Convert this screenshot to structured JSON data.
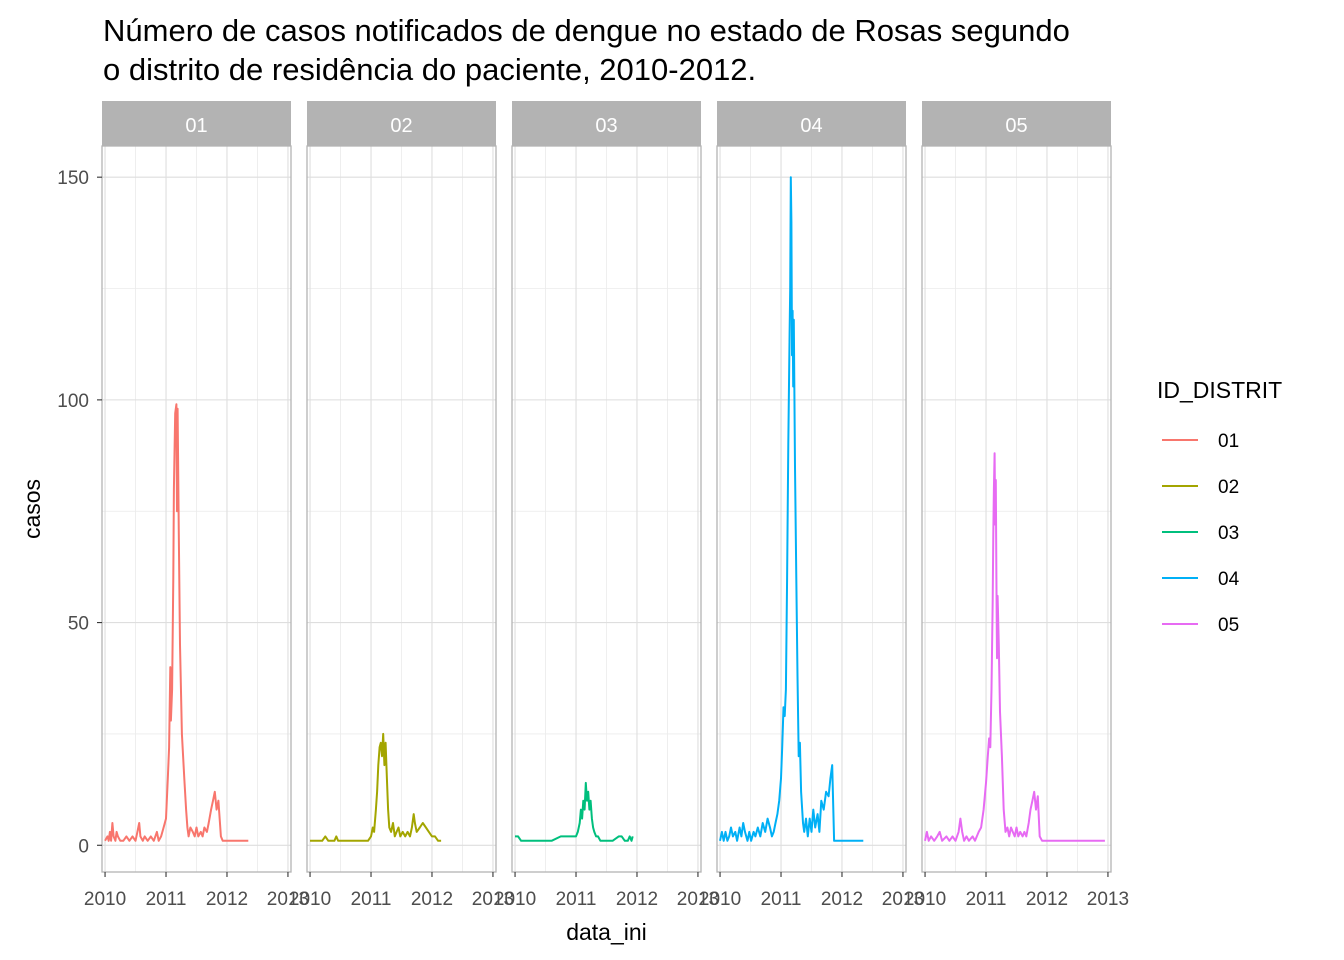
{
  "chart_data": {
    "type": "line",
    "title_lines": [
      "Número de casos notificados de dengue no estado de Rosas segundo",
      "o distrito de residência do paciente, 2010-2012."
    ],
    "xlabel": "data_ini",
    "ylabel": "casos",
    "xlim": [
      2009.95,
      2013.05
    ],
    "ylim": [
      -6,
      157
    ],
    "x_ticks": [
      2010,
      2011,
      2012,
      2013
    ],
    "x_tick_labels": [
      "2010",
      "2011",
      "2012",
      "2013"
    ],
    "y_ticks": [
      0,
      50,
      100,
      150
    ],
    "y_tick_labels": [
      "0",
      "50",
      "100",
      "150"
    ],
    "grid": true,
    "facet_by": "ID_DISTRIT",
    "legend": {
      "title": "ID_DISTRIT",
      "position": "right"
    },
    "series": [
      {
        "name": "01",
        "color": "#F8766D",
        "points": [
          [
            2010.0,
            1
          ],
          [
            2010.04,
            2
          ],
          [
            2010.06,
            1
          ],
          [
            2010.08,
            3
          ],
          [
            2010.1,
            1
          ],
          [
            2010.12,
            5
          ],
          [
            2010.14,
            2
          ],
          [
            2010.17,
            1
          ],
          [
            2010.19,
            3
          ],
          [
            2010.21,
            2
          ],
          [
            2010.25,
            1
          ],
          [
            2010.3,
            1
          ],
          [
            2010.35,
            2
          ],
          [
            2010.4,
            1
          ],
          [
            2010.45,
            2
          ],
          [
            2010.5,
            1
          ],
          [
            2010.53,
            3
          ],
          [
            2010.56,
            5
          ],
          [
            2010.58,
            2
          ],
          [
            2010.62,
            1
          ],
          [
            2010.65,
            2
          ],
          [
            2010.7,
            1
          ],
          [
            2010.75,
            2
          ],
          [
            2010.8,
            1
          ],
          [
            2010.85,
            3
          ],
          [
            2010.88,
            1
          ],
          [
            2010.92,
            2
          ],
          [
            2010.96,
            4
          ],
          [
            2011.0,
            6
          ],
          [
            2011.03,
            15
          ],
          [
            2011.05,
            22
          ],
          [
            2011.07,
            40
          ],
          [
            2011.08,
            28
          ],
          [
            2011.1,
            35
          ],
          [
            2011.12,
            60
          ],
          [
            2011.13,
            80
          ],
          [
            2011.15,
            97
          ],
          [
            2011.17,
            99
          ],
          [
            2011.18,
            75
          ],
          [
            2011.19,
            98
          ],
          [
            2011.21,
            70
          ],
          [
            2011.23,
            45
          ],
          [
            2011.26,
            25
          ],
          [
            2011.3,
            15
          ],
          [
            2011.33,
            8
          ],
          [
            2011.35,
            4
          ],
          [
            2011.37,
            2
          ],
          [
            2011.4,
            4
          ],
          [
            2011.44,
            3
          ],
          [
            2011.47,
            2
          ],
          [
            2011.5,
            4
          ],
          [
            2011.53,
            2
          ],
          [
            2011.57,
            3
          ],
          [
            2011.6,
            2
          ],
          [
            2011.63,
            4
          ],
          [
            2011.67,
            3
          ],
          [
            2011.7,
            5
          ],
          [
            2011.74,
            8
          ],
          [
            2011.77,
            10
          ],
          [
            2011.8,
            12
          ],
          [
            2011.83,
            8
          ],
          [
            2011.86,
            10
          ],
          [
            2011.9,
            2
          ],
          [
            2011.93,
            1
          ],
          [
            2012.0,
            1
          ],
          [
            2012.2,
            1
          ],
          [
            2012.35,
            1
          ]
        ]
      },
      {
        "name": "02",
        "color": "#A3A500",
        "points": [
          [
            2010.0,
            1
          ],
          [
            2010.1,
            1
          ],
          [
            2010.2,
            1
          ],
          [
            2010.25,
            2
          ],
          [
            2010.3,
            1
          ],
          [
            2010.4,
            1
          ],
          [
            2010.43,
            2
          ],
          [
            2010.46,
            1
          ],
          [
            2010.6,
            1
          ],
          [
            2010.8,
            1
          ],
          [
            2010.95,
            1
          ],
          [
            2011.0,
            2
          ],
          [
            2011.03,
            4
          ],
          [
            2011.05,
            3
          ],
          [
            2011.08,
            8
          ],
          [
            2011.1,
            12
          ],
          [
            2011.12,
            18
          ],
          [
            2011.14,
            22
          ],
          [
            2011.16,
            23
          ],
          [
            2011.18,
            20
          ],
          [
            2011.2,
            25
          ],
          [
            2011.22,
            18
          ],
          [
            2011.24,
            23
          ],
          [
            2011.26,
            15
          ],
          [
            2011.28,
            8
          ],
          [
            2011.3,
            4
          ],
          [
            2011.33,
            3
          ],
          [
            2011.36,
            5
          ],
          [
            2011.39,
            2
          ],
          [
            2011.42,
            3
          ],
          [
            2011.45,
            4
          ],
          [
            2011.48,
            2
          ],
          [
            2011.52,
            3
          ],
          [
            2011.56,
            2
          ],
          [
            2011.6,
            3
          ],
          [
            2011.64,
            2
          ],
          [
            2011.67,
            4
          ],
          [
            2011.7,
            7
          ],
          [
            2011.72,
            5
          ],
          [
            2011.75,
            3
          ],
          [
            2011.8,
            4
          ],
          [
            2011.85,
            5
          ],
          [
            2011.9,
            4
          ],
          [
            2011.95,
            3
          ],
          [
            2012.0,
            2
          ],
          [
            2012.05,
            2
          ],
          [
            2012.1,
            1
          ],
          [
            2012.15,
            1
          ]
        ]
      },
      {
        "name": "03",
        "color": "#00BF7D",
        "points": [
          [
            2010.0,
            2
          ],
          [
            2010.05,
            2
          ],
          [
            2010.1,
            1
          ],
          [
            2010.2,
            1
          ],
          [
            2010.4,
            1
          ],
          [
            2010.6,
            1
          ],
          [
            2010.75,
            2
          ],
          [
            2010.85,
            2
          ],
          [
            2010.95,
            2
          ],
          [
            2011.0,
            2
          ],
          [
            2011.03,
            3
          ],
          [
            2011.06,
            5
          ],
          [
            2011.08,
            8
          ],
          [
            2011.1,
            6
          ],
          [
            2011.12,
            10
          ],
          [
            2011.14,
            8
          ],
          [
            2011.16,
            14
          ],
          [
            2011.18,
            10
          ],
          [
            2011.2,
            12
          ],
          [
            2011.22,
            8
          ],
          [
            2011.24,
            10
          ],
          [
            2011.26,
            6
          ],
          [
            2011.28,
            4
          ],
          [
            2011.3,
            3
          ],
          [
            2011.33,
            2
          ],
          [
            2011.36,
            2
          ],
          [
            2011.4,
            1
          ],
          [
            2011.5,
            1
          ],
          [
            2011.6,
            1
          ],
          [
            2011.7,
            2
          ],
          [
            2011.75,
            2
          ],
          [
            2011.8,
            1
          ],
          [
            2011.85,
            1
          ],
          [
            2011.88,
            2
          ],
          [
            2011.91,
            1
          ],
          [
            2011.93,
            2
          ]
        ]
      },
      {
        "name": "04",
        "color": "#00B0F6",
        "points": [
          [
            2010.0,
            1
          ],
          [
            2010.03,
            3
          ],
          [
            2010.06,
            1
          ],
          [
            2010.09,
            3
          ],
          [
            2010.12,
            1
          ],
          [
            2010.15,
            2
          ],
          [
            2010.18,
            4
          ],
          [
            2010.21,
            2
          ],
          [
            2010.25,
            3
          ],
          [
            2010.28,
            1
          ],
          [
            2010.32,
            4
          ],
          [
            2010.35,
            2
          ],
          [
            2010.38,
            5
          ],
          [
            2010.41,
            3
          ],
          [
            2010.45,
            1
          ],
          [
            2010.48,
            3
          ],
          [
            2010.51,
            1
          ],
          [
            2010.55,
            3
          ],
          [
            2010.58,
            2
          ],
          [
            2010.62,
            4
          ],
          [
            2010.66,
            2
          ],
          [
            2010.7,
            5
          ],
          [
            2010.74,
            3
          ],
          [
            2010.78,
            6
          ],
          [
            2010.82,
            4
          ],
          [
            2010.85,
            2
          ],
          [
            2010.88,
            3
          ],
          [
            2010.91,
            5
          ],
          [
            2010.94,
            7
          ],
          [
            2010.97,
            10
          ],
          [
            2011.0,
            15
          ],
          [
            2011.02,
            22
          ],
          [
            2011.04,
            31
          ],
          [
            2011.06,
            29
          ],
          [
            2011.08,
            35
          ],
          [
            2011.1,
            60
          ],
          [
            2011.12,
            90
          ],
          [
            2011.14,
            115
          ],
          [
            2011.15,
            125
          ],
          [
            2011.16,
            150
          ],
          [
            2011.17,
            140
          ],
          [
            2011.18,
            110
          ],
          [
            2011.19,
            120
          ],
          [
            2011.2,
            103
          ],
          [
            2011.21,
            118
          ],
          [
            2011.23,
            85
          ],
          [
            2011.25,
            60
          ],
          [
            2011.27,
            38
          ],
          [
            2011.29,
            20
          ],
          [
            2011.31,
            23
          ],
          [
            2011.33,
            12
          ],
          [
            2011.36,
            5
          ],
          [
            2011.38,
            3
          ],
          [
            2011.41,
            6
          ],
          [
            2011.44,
            2
          ],
          [
            2011.47,
            6
          ],
          [
            2011.5,
            3
          ],
          [
            2011.53,
            8
          ],
          [
            2011.56,
            4
          ],
          [
            2011.6,
            7
          ],
          [
            2011.63,
            3
          ],
          [
            2011.66,
            10
          ],
          [
            2011.7,
            8
          ],
          [
            2011.74,
            12
          ],
          [
            2011.78,
            11
          ],
          [
            2011.81,
            15
          ],
          [
            2011.84,
            18
          ],
          [
            2011.87,
            1
          ],
          [
            2011.95,
            1
          ],
          [
            2012.1,
            1
          ],
          [
            2012.35,
            1
          ]
        ]
      },
      {
        "name": "05",
        "color": "#E76BF3",
        "points": [
          [
            2010.0,
            1
          ],
          [
            2010.03,
            3
          ],
          [
            2010.06,
            1
          ],
          [
            2010.1,
            2
          ],
          [
            2010.15,
            1
          ],
          [
            2010.2,
            2
          ],
          [
            2010.24,
            3
          ],
          [
            2010.28,
            1
          ],
          [
            2010.35,
            2
          ],
          [
            2010.4,
            1
          ],
          [
            2010.45,
            2
          ],
          [
            2010.5,
            1
          ],
          [
            2010.55,
            3
          ],
          [
            2010.58,
            6
          ],
          [
            2010.61,
            3
          ],
          [
            2010.64,
            1
          ],
          [
            2010.68,
            2
          ],
          [
            2010.72,
            1
          ],
          [
            2010.78,
            2
          ],
          [
            2010.82,
            1
          ],
          [
            2010.88,
            3
          ],
          [
            2010.92,
            4
          ],
          [
            2010.96,
            8
          ],
          [
            2011.0,
            14
          ],
          [
            2011.03,
            20
          ],
          [
            2011.05,
            24
          ],
          [
            2011.07,
            22
          ],
          [
            2011.09,
            35
          ],
          [
            2011.11,
            55
          ],
          [
            2011.12,
            70
          ],
          [
            2011.13,
            80
          ],
          [
            2011.14,
            88
          ],
          [
            2011.15,
            72
          ],
          [
            2011.16,
            82
          ],
          [
            2011.17,
            60
          ],
          [
            2011.18,
            42
          ],
          [
            2011.19,
            56
          ],
          [
            2011.21,
            45
          ],
          [
            2011.23,
            30
          ],
          [
            2011.26,
            20
          ],
          [
            2011.29,
            8
          ],
          [
            2011.32,
            3
          ],
          [
            2011.35,
            4
          ],
          [
            2011.38,
            2
          ],
          [
            2011.41,
            4
          ],
          [
            2011.44,
            3
          ],
          [
            2011.47,
            2
          ],
          [
            2011.5,
            4
          ],
          [
            2011.53,
            2
          ],
          [
            2011.56,
            3
          ],
          [
            2011.6,
            2
          ],
          [
            2011.63,
            3
          ],
          [
            2011.66,
            2
          ],
          [
            2011.7,
            5
          ],
          [
            2011.73,
            8
          ],
          [
            2011.76,
            10
          ],
          [
            2011.79,
            12
          ],
          [
            2011.82,
            8
          ],
          [
            2011.85,
            11
          ],
          [
            2011.88,
            2
          ],
          [
            2011.92,
            1
          ],
          [
            2012.0,
            1
          ],
          [
            2012.5,
            1
          ],
          [
            2012.95,
            1
          ]
        ]
      }
    ]
  }
}
